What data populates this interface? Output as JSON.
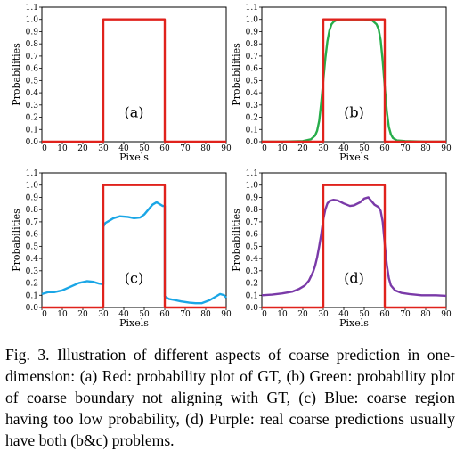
{
  "figure": {
    "caption": "Fig. 3. Illustration of different aspects of coarse prediction in one-dimension: (a) Red: probability plot of GT, (b) Green: probability plot of coarse boundary not aligning with GT, (c) Blue: coarse region having too low probability, (d) Purple: real coarse predictions usually have both (b&c) problems."
  },
  "colors": {
    "gt": "#e0221c",
    "green": "#27ad4a",
    "blue": "#1aa6e6",
    "purple": "#7a3aa8",
    "axis": "#000000"
  },
  "chart_data": [
    {
      "type": "line",
      "panel_label": "(a)",
      "xlabel": "Pixels",
      "ylabel": "Probabilities",
      "xlim": [
        0,
        90
      ],
      "ylim": [
        0,
        1.1
      ],
      "xticks": [
        0,
        10,
        20,
        30,
        40,
        50,
        60,
        70,
        80,
        90
      ],
      "yticks": [
        0.0,
        0.1,
        0.2,
        0.3,
        0.4,
        0.5,
        0.6,
        0.7,
        0.8,
        0.9,
        1.0,
        1.1
      ],
      "series": [
        {
          "color_key": "gt",
          "x": [
            0,
            30,
            30,
            60,
            60,
            90
          ],
          "y": [
            0,
            0,
            1,
            1,
            0,
            0
          ]
        }
      ]
    },
    {
      "type": "line",
      "panel_label": "(b)",
      "xlabel": "Pixels",
      "ylabel": "Probabilities",
      "xlim": [
        0,
        90
      ],
      "ylim": [
        0,
        1.1
      ],
      "xticks": [
        0,
        10,
        20,
        30,
        40,
        50,
        60,
        70,
        80,
        90
      ],
      "yticks": [
        0.0,
        0.1,
        0.2,
        0.3,
        0.4,
        0.5,
        0.6,
        0.7,
        0.8,
        0.9,
        1.0,
        1.1
      ],
      "series": [
        {
          "color_key": "green",
          "x": [
            0,
            10,
            20,
            24,
            26,
            27,
            28,
            29,
            30,
            31,
            32,
            33,
            34,
            35,
            36,
            38,
            40,
            45,
            50,
            54,
            56,
            57,
            58,
            59,
            60,
            61,
            62,
            63,
            64,
            66,
            70,
            80,
            90
          ],
          "y": [
            0,
            0,
            0.005,
            0.02,
            0.05,
            0.09,
            0.17,
            0.32,
            0.5,
            0.68,
            0.82,
            0.91,
            0.96,
            0.98,
            0.99,
            1.0,
            1.0,
            1.0,
            1.0,
            0.99,
            0.96,
            0.92,
            0.83,
            0.66,
            0.45,
            0.25,
            0.12,
            0.06,
            0.03,
            0.01,
            0.005,
            0,
            0
          ]
        },
        {
          "color_key": "gt",
          "x": [
            0,
            30,
            30,
            60,
            60,
            90
          ],
          "y": [
            0,
            0,
            1,
            1,
            0,
            0
          ]
        }
      ]
    },
    {
      "type": "line",
      "panel_label": "(c)",
      "xlabel": "Pixels",
      "ylabel": "Probabilities",
      "xlim": [
        0,
        90
      ],
      "ylim": [
        0,
        1.1
      ],
      "xticks": [
        0,
        10,
        20,
        30,
        40,
        50,
        60,
        70,
        80,
        90
      ],
      "yticks": [
        0.0,
        0.1,
        0.2,
        0.3,
        0.4,
        0.5,
        0.6,
        0.7,
        0.8,
        0.9,
        1.0,
        1.1
      ],
      "series": [
        {
          "color_key": "blue",
          "x": [
            0,
            3,
            6,
            10,
            14,
            18,
            22,
            25,
            28,
            30,
            30,
            31,
            33,
            35,
            38,
            42,
            45,
            48,
            50,
            52,
            54,
            56,
            58,
            59,
            60,
            60,
            62,
            65,
            68,
            72,
            75,
            78,
            82,
            85,
            87,
            89,
            90
          ],
          "y": [
            0.11,
            0.125,
            0.125,
            0.14,
            0.17,
            0.2,
            0.215,
            0.21,
            0.195,
            0.19,
            0.66,
            0.69,
            0.71,
            0.73,
            0.745,
            0.74,
            0.73,
            0.735,
            0.76,
            0.8,
            0.84,
            0.86,
            0.84,
            0.83,
            0.83,
            0.09,
            0.07,
            0.06,
            0.05,
            0.04,
            0.035,
            0.035,
            0.06,
            0.09,
            0.11,
            0.1,
            0.08
          ]
        },
        {
          "color_key": "gt",
          "x": [
            0,
            30,
            30,
            60,
            60,
            90
          ],
          "y": [
            0,
            0,
            1,
            1,
            0,
            0
          ]
        }
      ]
    },
    {
      "type": "line",
      "panel_label": "(d)",
      "xlabel": "Pixels",
      "ylabel": "Probabilities",
      "xlim": [
        0,
        90
      ],
      "ylim": [
        0,
        1.1
      ],
      "xticks": [
        0,
        10,
        20,
        30,
        40,
        50,
        60,
        70,
        80,
        90
      ],
      "yticks": [
        0.0,
        0.1,
        0.2,
        0.3,
        0.4,
        0.5,
        0.6,
        0.7,
        0.8,
        0.9,
        1.0,
        1.1
      ],
      "series": [
        {
          "color_key": "purple",
          "x": [
            0,
            5,
            10,
            15,
            18,
            21,
            23,
            25,
            26,
            27,
            28,
            29,
            30,
            31,
            32,
            33,
            35,
            37,
            40,
            43,
            45,
            48,
            50,
            52,
            53,
            55,
            57,
            58,
            59,
            60,
            61,
            62,
            63,
            65,
            68,
            72,
            78,
            85,
            90
          ],
          "y": [
            0.1,
            0.105,
            0.115,
            0.13,
            0.15,
            0.18,
            0.22,
            0.29,
            0.34,
            0.41,
            0.5,
            0.6,
            0.72,
            0.8,
            0.85,
            0.87,
            0.88,
            0.875,
            0.85,
            0.83,
            0.835,
            0.86,
            0.89,
            0.9,
            0.88,
            0.84,
            0.82,
            0.79,
            0.7,
            0.52,
            0.35,
            0.24,
            0.18,
            0.14,
            0.12,
            0.11,
            0.1,
            0.1,
            0.095
          ]
        },
        {
          "color_key": "gt",
          "x": [
            0,
            30,
            30,
            60,
            60,
            90
          ],
          "y": [
            0,
            0,
            1,
            1,
            0,
            0
          ]
        }
      ]
    }
  ]
}
